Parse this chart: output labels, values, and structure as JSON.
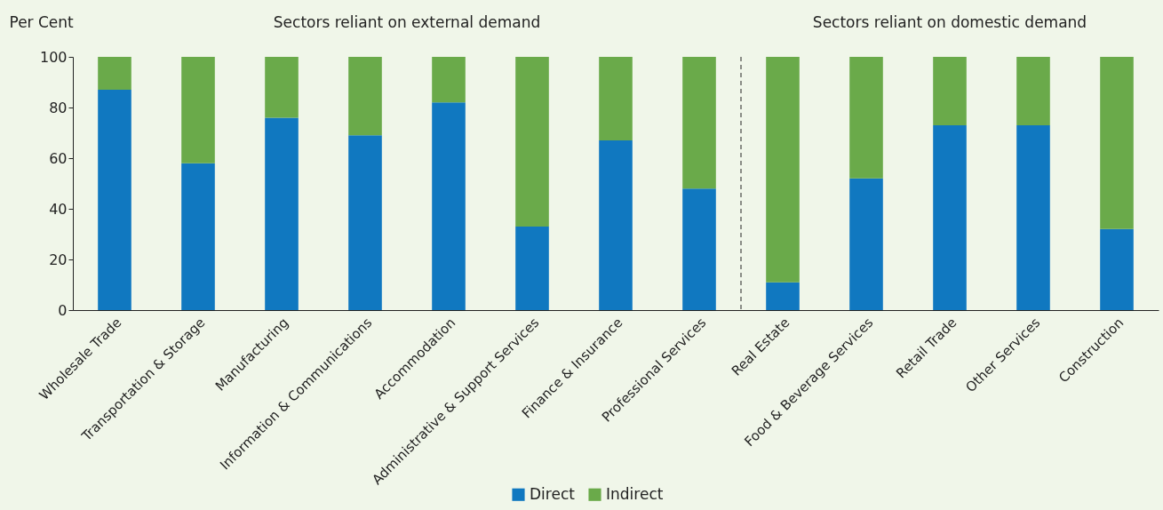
{
  "chart_data": {
    "type": "bar",
    "stacked": true,
    "ylabel": "Per Cent",
    "categories": [
      "Wholesale Trade",
      "Transportation & Storage",
      "Manufacturing",
      "Information & Communications",
      "Accommodation",
      "Administrative & Support Services",
      "Finance & Insurance",
      "Professional Services",
      "Real Estate",
      "Food & Beverage Services",
      "Retail Trade",
      "Other Services",
      "Construction"
    ],
    "series": [
      {
        "name": "Direct",
        "color": "#1078c0",
        "values": [
          87,
          58,
          76,
          69,
          82,
          33,
          67,
          48,
          11,
          52,
          73,
          73,
          32
        ]
      },
      {
        "name": "Indirect",
        "color": "#6aaa4a",
        "values": [
          13,
          42,
          24,
          31,
          18,
          67,
          33,
          52,
          89,
          48,
          27,
          27,
          68
        ]
      }
    ],
    "ylim": [
      0,
      100
    ],
    "yticks": [
      0,
      20,
      40,
      60,
      80,
      100
    ],
    "grid": false,
    "legend": "bottom",
    "annotations": [
      "Sectors reliant on external demand",
      "Sectors reliant on domestic demand"
    ]
  }
}
